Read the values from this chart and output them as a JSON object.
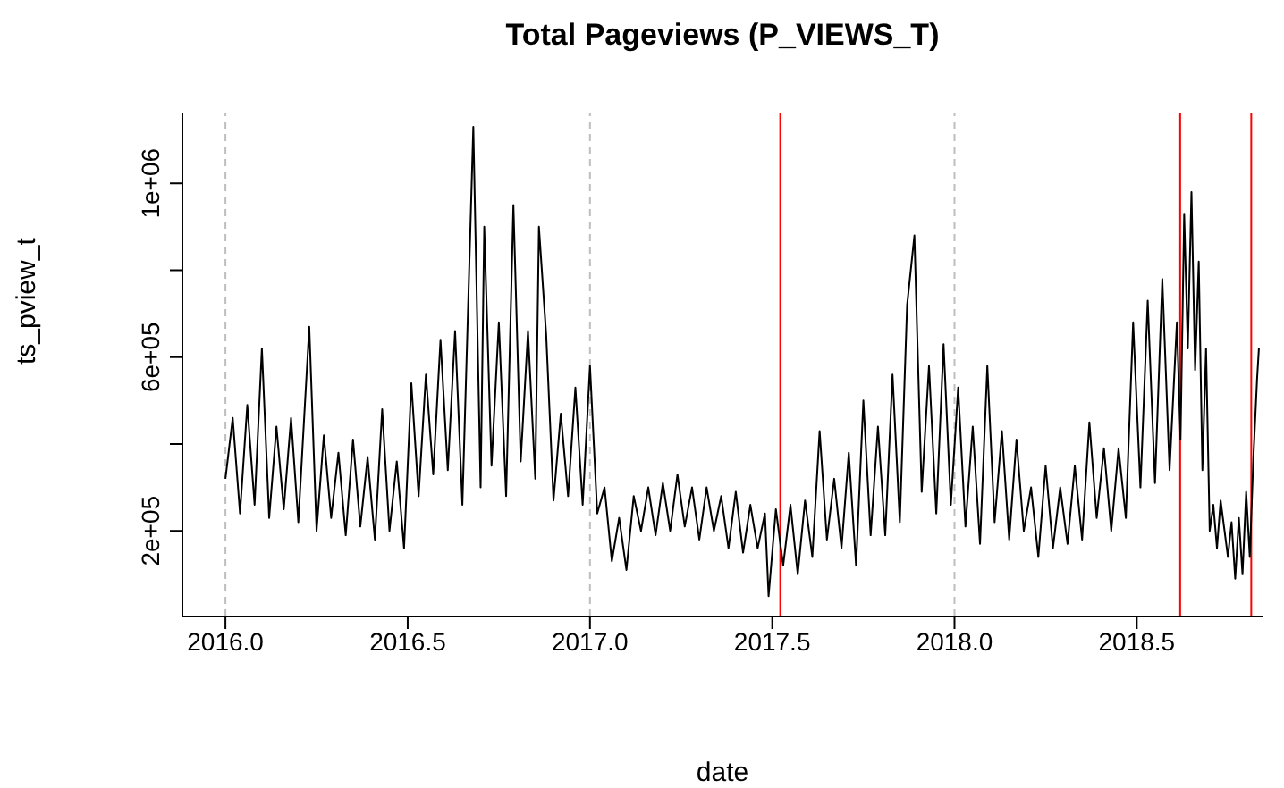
{
  "chart_data": {
    "type": "line",
    "title": "Total Pageviews (P_VIEWS_T)",
    "xlabel": "date",
    "ylabel": "ts_pview_t",
    "x": [
      2016.0,
      2016.02,
      2016.04,
      2016.06,
      2016.08,
      2016.1,
      2016.12,
      2016.14,
      2016.16,
      2016.18,
      2016.2,
      2016.23,
      2016.25,
      2016.27,
      2016.29,
      2016.31,
      2016.33,
      2016.35,
      2016.37,
      2016.39,
      2016.41,
      2016.43,
      2016.45,
      2016.47,
      2016.49,
      2016.51,
      2016.53,
      2016.55,
      2016.57,
      2016.59,
      2016.61,
      2016.63,
      2016.65,
      2016.68,
      2016.7,
      2016.71,
      2016.73,
      2016.75,
      2016.77,
      2016.79,
      2016.81,
      2016.83,
      2016.85,
      2016.86,
      2016.88,
      2016.9,
      2016.92,
      2016.94,
      2016.96,
      2016.98,
      2017.0,
      2017.02,
      2017.04,
      2017.06,
      2017.08,
      2017.1,
      2017.12,
      2017.14,
      2017.16,
      2017.18,
      2017.2,
      2017.22,
      2017.24,
      2017.26,
      2017.28,
      2017.3,
      2017.32,
      2017.34,
      2017.36,
      2017.38,
      2017.4,
      2017.42,
      2017.44,
      2017.46,
      2017.48,
      2017.49,
      2017.51,
      2017.53,
      2017.55,
      2017.57,
      2017.59,
      2017.61,
      2017.63,
      2017.65,
      2017.67,
      2017.69,
      2017.71,
      2017.73,
      2017.75,
      2017.77,
      2017.79,
      2017.81,
      2017.83,
      2017.85,
      2017.87,
      2017.89,
      2017.91,
      2017.93,
      2017.95,
      2017.97,
      2017.99,
      2018.01,
      2018.03,
      2018.05,
      2018.07,
      2018.09,
      2018.11,
      2018.13,
      2018.15,
      2018.17,
      2018.19,
      2018.21,
      2018.23,
      2018.25,
      2018.27,
      2018.29,
      2018.31,
      2018.33,
      2018.35,
      2018.37,
      2018.39,
      2018.41,
      2018.43,
      2018.45,
      2018.47,
      2018.49,
      2018.51,
      2018.53,
      2018.55,
      2018.57,
      2018.59,
      2018.61,
      2018.62,
      2018.63,
      2018.64,
      2018.65,
      2018.66,
      2018.67,
      2018.68,
      2018.69,
      2018.7,
      2018.71,
      2018.72,
      2018.73,
      2018.75,
      2018.76,
      2018.77,
      2018.78,
      2018.79,
      2018.8,
      2018.81,
      2018.82,
      2018.83,
      2018.835
    ],
    "series": [
      {
        "color": "#000000",
        "values": [
          320000,
          460000,
          240000,
          490000,
          260000,
          620000,
          230000,
          440000,
          250000,
          460000,
          220000,
          670000,
          200000,
          420000,
          230000,
          380000,
          190000,
          410000,
          210000,
          370000,
          180000,
          480000,
          200000,
          360000,
          160000,
          540000,
          280000,
          560000,
          330000,
          640000,
          340000,
          660000,
          260000,
          1130000,
          300000,
          900000,
          350000,
          680000,
          280000,
          950000,
          360000,
          660000,
          320000,
          900000,
          650000,
          270000,
          470000,
          280000,
          530000,
          260000,
          580000,
          240000,
          300000,
          130000,
          230000,
          110000,
          280000,
          200000,
          300000,
          190000,
          310000,
          200000,
          330000,
          210000,
          300000,
          180000,
          300000,
          200000,
          280000,
          160000,
          290000,
          150000,
          260000,
          160000,
          240000,
          50000,
          250000,
          120000,
          260000,
          100000,
          270000,
          140000,
          430000,
          180000,
          320000,
          160000,
          380000,
          120000,
          500000,
          190000,
          440000,
          190000,
          560000,
          220000,
          720000,
          880000,
          290000,
          580000,
          240000,
          630000,
          260000,
          530000,
          210000,
          440000,
          170000,
          580000,
          220000,
          430000,
          180000,
          410000,
          200000,
          300000,
          140000,
          350000,
          160000,
          300000,
          170000,
          350000,
          180000,
          450000,
          230000,
          390000,
          200000,
          390000,
          230000,
          680000,
          300000,
          730000,
          310000,
          780000,
          340000,
          680000,
          410000,
          930000,
          620000,
          980000,
          570000,
          820000,
          340000,
          620000,
          200000,
          260000,
          160000,
          270000,
          140000,
          220000,
          90000,
          230000,
          100000,
          290000,
          140000,
          370000,
          550000,
          620000
        ]
      }
    ],
    "xlim": [
      2015.882,
      2018.845
    ],
    "xticks": [
      {
        "value": 2016,
        "label": "2016.0"
      },
      {
        "value": 2016.5,
        "label": "2016.5"
      },
      {
        "value": 2017,
        "label": "2017.0"
      },
      {
        "value": 2017.5,
        "label": "2017.5"
      },
      {
        "value": 2018,
        "label": "2018.0"
      },
      {
        "value": 2018.5,
        "label": "2018.5"
      }
    ],
    "ylim": [
      3000,
      1163000
    ],
    "yticks": [
      {
        "value": 200000,
        "label": "2e+05"
      },
      {
        "value": 400000,
        "label": null
      },
      {
        "value": 600000,
        "label": "6e+05"
      },
      {
        "value": 800000,
        "label": null
      },
      {
        "value": 1000000,
        "label": "1e+06"
      }
    ],
    "ref_lines": [
      {
        "axis": "x",
        "value": 2016,
        "color": "#bebebe",
        "line_style": "dashed"
      },
      {
        "axis": "x",
        "value": 2017,
        "color": "#bebebe",
        "line_style": "dashed"
      },
      {
        "axis": "x",
        "value": 2018,
        "color": "#bebebe",
        "line_style": "dashed"
      },
      {
        "axis": "x",
        "value": 2017.522,
        "color": "#ff0000",
        "line_style": "solid"
      },
      {
        "axis": "x",
        "value": 2018.619,
        "color": "#ff0000",
        "line_style": "solid"
      },
      {
        "axis": "x",
        "value": 2018.814,
        "color": "#ff0000",
        "line_style": "solid"
      }
    ],
    "marker": "none",
    "line_style": "solid",
    "grid": false,
    "legend": false
  }
}
